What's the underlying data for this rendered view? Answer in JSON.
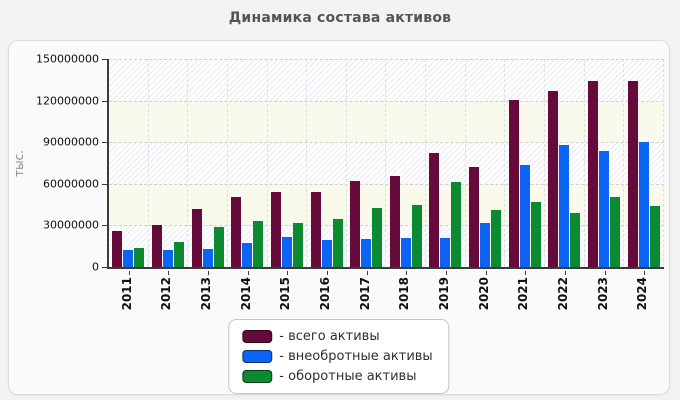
{
  "page": {
    "title": "Динамика состава активов"
  },
  "legend": {
    "prefix": "- ",
    "items": [
      "всего активы",
      "внеобротные активы",
      "оборотные активы"
    ]
  },
  "colors": {
    "total_assets": "#66093b",
    "noncurrent_assets": "#0b64f4",
    "current_assets": "#0b8a32",
    "title_text": "#555555",
    "axis": "#3b3b3b"
  },
  "chart_data": {
    "type": "bar",
    "title": "Динамика состава активов",
    "xlabel": "",
    "ylabel": "тыс.",
    "categories": [
      "2011",
      "2012",
      "2013",
      "2014",
      "2015",
      "2016",
      "2017",
      "2018",
      "2019",
      "2020",
      "2021",
      "2022",
      "2023",
      "2024"
    ],
    "series": [
      {
        "key": "total-assets",
        "name": "всего активы",
        "color": "#66093b",
        "values": [
          26300000,
          30100000,
          41900000,
          50500000,
          53800000,
          54200000,
          62300000,
          65600000,
          82000000,
          72200000,
          120500000,
          126600000,
          134300000,
          133900000
        ]
      },
      {
        "key": "noncurrent-assets",
        "name": "внеобротные активы",
        "color": "#0b64f4",
        "values": [
          12600000,
          12200000,
          13100000,
          17400000,
          21900000,
          19500000,
          19900000,
          20700000,
          20900000,
          31400000,
          73400000,
          87700000,
          83900000,
          89900000
        ]
      },
      {
        "key": "current-assets",
        "name": "оборотные активы",
        "color": "#0b8a32",
        "values": [
          13700000,
          17900000,
          28800000,
          33100000,
          31900000,
          34700000,
          42400000,
          44900000,
          61100000,
          40800000,
          47100000,
          38900000,
          50400000,
          44000000
        ]
      }
    ],
    "ylim": [
      0,
      150000000
    ],
    "yticks": [
      0,
      30000000,
      60000000,
      90000000,
      120000000,
      150000000
    ],
    "ytick_labels": [
      "0",
      "30000000",
      "60000000",
      "90000000",
      "120000000",
      "150000000"
    ],
    "grid": "dashed horizontal and vertical, alternating hatched/cream horizontal bands",
    "legend_position": "bottom-center"
  }
}
